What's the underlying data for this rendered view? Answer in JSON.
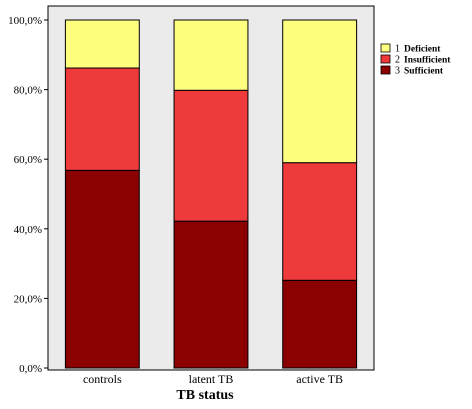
{
  "chart_data": {
    "type": "bar",
    "stacked": true,
    "categories": [
      "controls",
      "latent TB",
      "active TB"
    ],
    "series": [
      {
        "code": "3",
        "name": "Sufficient",
        "color": "#8b0000",
        "values": [
          56.8,
          42.2,
          25.2
        ]
      },
      {
        "code": "2",
        "name": "Insufficient",
        "color": "#ee3a3a",
        "values": [
          29.4,
          37.6,
          33.8
        ]
      },
      {
        "code": "1",
        "name": "Deficient",
        "color": "#ffff7f",
        "values": [
          13.8,
          20.2,
          41.0
        ]
      }
    ],
    "xlabel": "TB status",
    "ylabel": "",
    "ylim": [
      0,
      100
    ],
    "y_ticks": [
      "0,0%",
      "20,0%",
      "40,0%",
      "60,0%",
      "80,0%",
      "100,0%"
    ],
    "plot_background": "#ebebeb",
    "legend_position": "right",
    "legend_order": [
      "Deficient",
      "Insufficient",
      "Sufficient"
    ],
    "grid": false
  }
}
